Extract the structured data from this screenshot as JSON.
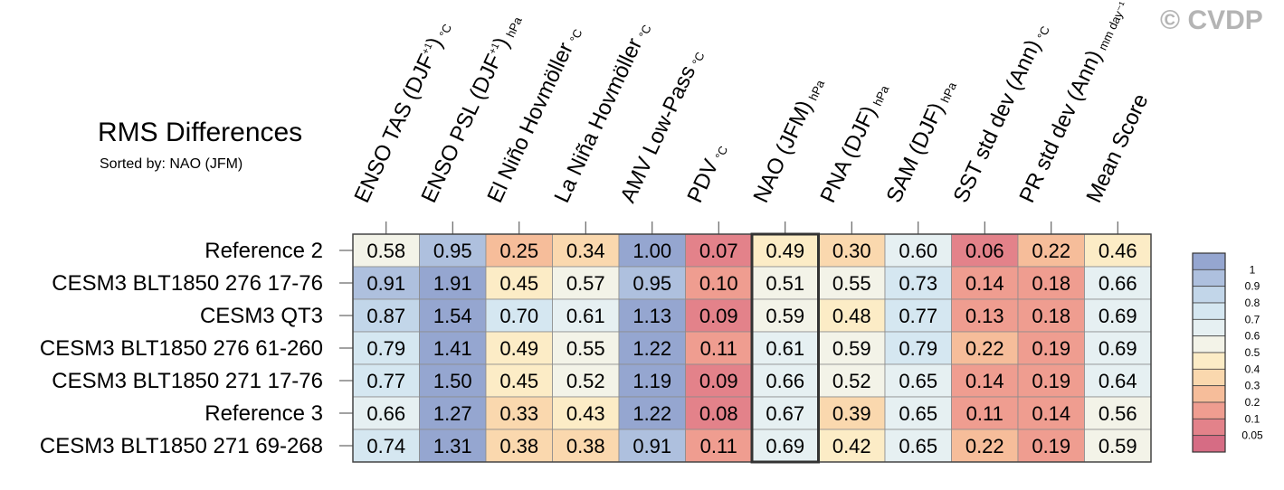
{
  "title": "RMS Differences",
  "subtitle": "Sorted by: NAO (JFM)",
  "watermark": "© CVDP",
  "chart_data": {
    "type": "heatmap",
    "title": "RMS Differences",
    "subtitle": "Sorted by: NAO (JFM)",
    "sorted_by": "NAO (JFM)",
    "highlight_column": "NAO (JFM)",
    "columns": [
      {
        "label": "ENSO TAS (DJF",
        "sup": "+1",
        "close": ")",
        "unit": "°C"
      },
      {
        "label": "ENSO PSL (DJF",
        "sup": "+1",
        "close": ")",
        "unit": "hPa"
      },
      {
        "label": "El Niño Hovmöller",
        "sup": "",
        "close": "",
        "unit": "°C"
      },
      {
        "label": "La Niña Hovmöller",
        "sup": "",
        "close": "",
        "unit": "°C"
      },
      {
        "label": "AMV Low-Pass",
        "sup": "",
        "close": "",
        "unit": "°C"
      },
      {
        "label": "PDV",
        "sup": "",
        "close": "",
        "unit": "°C"
      },
      {
        "label": "NAO (JFM)",
        "sup": "",
        "close": "",
        "unit": "hPa"
      },
      {
        "label": "PNA (DJF)",
        "sup": "",
        "close": "",
        "unit": "hPa"
      },
      {
        "label": "SAM (DJF)",
        "sup": "",
        "close": "",
        "unit": "hPa"
      },
      {
        "label": "SST std dev (Ann)",
        "sup": "",
        "close": "",
        "unit": "°C"
      },
      {
        "label": "PR std dev (Ann)",
        "sup": "",
        "close": "",
        "unit": "mm day⁻¹"
      },
      {
        "label": "Mean Score",
        "sup": "",
        "close": "",
        "unit": ""
      }
    ],
    "rows": [
      {
        "name": "Reference 2",
        "values": [
          0.58,
          0.95,
          0.25,
          0.34,
          1.0,
          0.07,
          0.49,
          0.3,
          0.6,
          0.06,
          0.22,
          0.46
        ]
      },
      {
        "name": "CESM3 BLT1850 276 17-76",
        "values": [
          0.91,
          1.91,
          0.45,
          0.57,
          0.95,
          0.1,
          0.51,
          0.55,
          0.73,
          0.14,
          0.18,
          0.66
        ]
      },
      {
        "name": "CESM3 QT3",
        "values": [
          0.87,
          1.54,
          0.7,
          0.61,
          1.13,
          0.09,
          0.59,
          0.48,
          0.77,
          0.13,
          0.18,
          0.69
        ]
      },
      {
        "name": "CESM3 BLT1850 276 61-260",
        "values": [
          0.79,
          1.41,
          0.49,
          0.55,
          1.22,
          0.11,
          0.61,
          0.59,
          0.79,
          0.22,
          0.19,
          0.69
        ]
      },
      {
        "name": "CESM3 BLT1850 271 17-76",
        "values": [
          0.77,
          1.5,
          0.45,
          0.52,
          1.19,
          0.09,
          0.66,
          0.52,
          0.65,
          0.14,
          0.19,
          0.64
        ]
      },
      {
        "name": "Reference 3",
        "values": [
          0.66,
          1.27,
          0.33,
          0.43,
          1.22,
          0.08,
          0.67,
          0.39,
          0.65,
          0.11,
          0.14,
          0.56
        ]
      },
      {
        "name": "CESM3 BLT1850 271 69-268",
        "values": [
          0.74,
          1.31,
          0.38,
          0.38,
          0.91,
          0.11,
          0.69,
          0.42,
          0.65,
          0.22,
          0.19,
          0.59
        ]
      }
    ],
    "colorbar": {
      "labels": [
        "1",
        "0.9",
        "0.8",
        "0.7",
        "0.6",
        "0.5",
        "0.4",
        "0.3",
        "0.2",
        "0.1",
        "0.05"
      ],
      "bins": [
        {
          "min": 1.0,
          "color": "#95a6d0"
        },
        {
          "min": 0.9,
          "color": "#aec0de"
        },
        {
          "min": 0.8,
          "color": "#c2d6e9"
        },
        {
          "min": 0.7,
          "color": "#d5e7f1"
        },
        {
          "min": 0.6,
          "color": "#e6f0f2"
        },
        {
          "min": 0.5,
          "color": "#f3f3e8"
        },
        {
          "min": 0.4,
          "color": "#fcecc6"
        },
        {
          "min": 0.3,
          "color": "#fad8ae"
        },
        {
          "min": 0.2,
          "color": "#f6bd9a"
        },
        {
          "min": 0.1,
          "color": "#ef9d90"
        },
        {
          "min": 0.05,
          "color": "#e3828a"
        },
        {
          "min": 0,
          "color": "#d66c84"
        }
      ]
    }
  }
}
